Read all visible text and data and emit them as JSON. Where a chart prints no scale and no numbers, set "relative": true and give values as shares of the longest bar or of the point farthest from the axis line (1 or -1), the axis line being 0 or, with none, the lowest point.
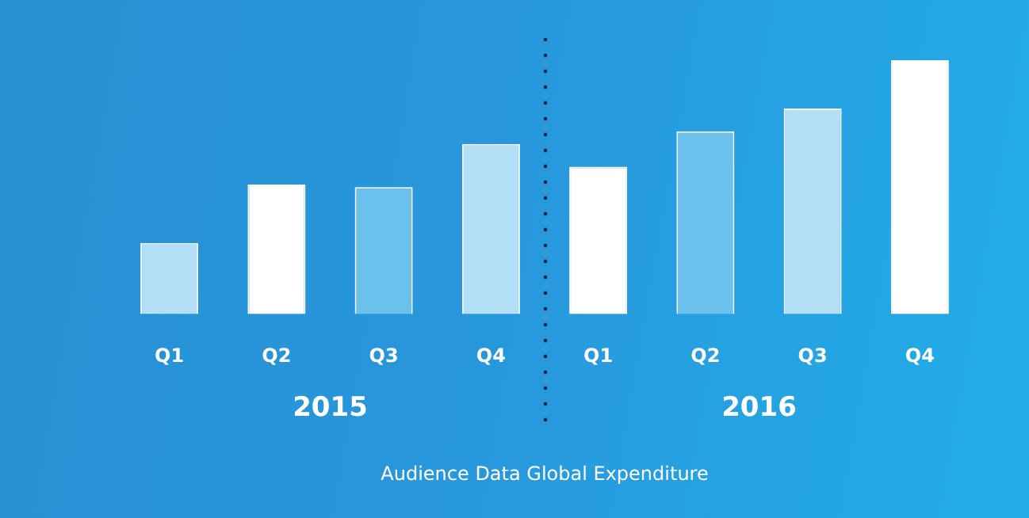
{
  "chart_data": {
    "type": "bar",
    "title": "Audience Data Global Expenditure",
    "relative": true,
    "categories": [
      "Q1",
      "Q2",
      "Q3",
      "Q4",
      "Q1",
      "Q2",
      "Q3",
      "Q4"
    ],
    "values": [
      0.28,
      0.51,
      0.5,
      0.67,
      0.58,
      0.72,
      0.81,
      1
    ],
    "colors": [
      "#b4e0f7",
      "#ffffff",
      "#6cc0ec",
      "#b4e0f7",
      "#ffffff",
      "#6cc0ec",
      "#b4e0f7",
      "#ffffff"
    ],
    "annotations": [
      "2015",
      "2016"
    ],
    "grid": false,
    "legend": false
  }
}
